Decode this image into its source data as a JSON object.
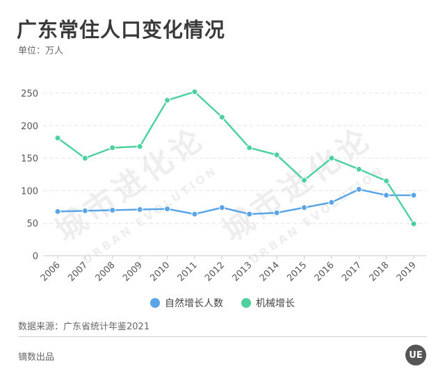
{
  "header": {
    "title": "广东常住人口变化情况",
    "unit": "单位：万人"
  },
  "watermark": {
    "cn": "城市进化论",
    "en": "URBAN EVOLUTION"
  },
  "footer": {
    "source": "数据来源：广东省统计年鉴2021",
    "producer": "镝数出品",
    "logo_text": "UE"
  },
  "legend": [
    {
      "label": "自然增长人数",
      "color": "#5aa5e8"
    },
    {
      "label": "机械增长",
      "color": "#4fd19f"
    }
  ],
  "chart_data": {
    "type": "line",
    "title": "广东常住人口变化情况",
    "subtitle": "单位：万人",
    "xlabel": "",
    "ylabel": "",
    "categories": [
      "2006",
      "2007",
      "2008",
      "2009",
      "2010",
      "2011",
      "2012",
      "2013",
      "2014",
      "2015",
      "2016",
      "2017",
      "2018",
      "2019"
    ],
    "series": [
      {
        "name": "自然增长人数",
        "color": "#5aa5e8",
        "values": [
          68,
          69,
          70,
          71,
          72,
          64,
          74,
          64,
          66,
          74,
          82,
          102,
          93,
          93
        ]
      },
      {
        "name": "机械增长",
        "color": "#4fd19f",
        "values": [
          181,
          150,
          166,
          168,
          239,
          252,
          213,
          166,
          155,
          116,
          150,
          133,
          115,
          49
        ]
      }
    ],
    "yticks": [
      0,
      50,
      100,
      150,
      200,
      250
    ],
    "ylim": [
      0,
      250
    ],
    "grid": true,
    "legend_position": "bottom"
  }
}
